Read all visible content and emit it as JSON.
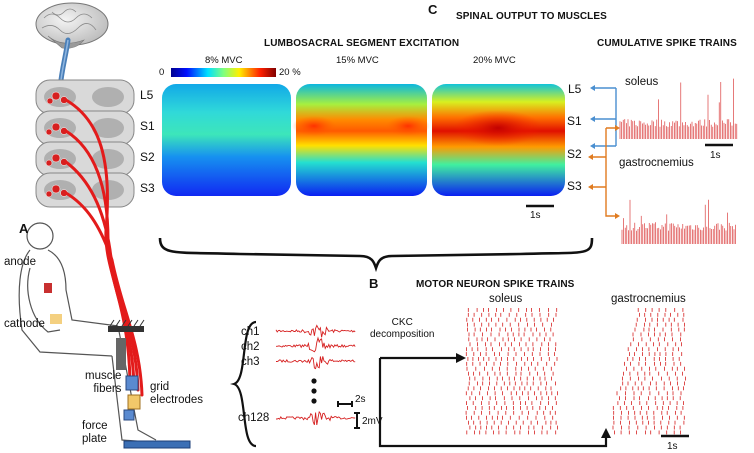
{
  "panels": {
    "a": {
      "letter": "A"
    },
    "b": {
      "letter": "B",
      "title": "MOTOR NEURON SPIKE TRAINS"
    },
    "c": {
      "letter": "C",
      "title": "SPINAL OUTPUT TO MUSCLES"
    }
  },
  "segments": [
    "L5",
    "S1",
    "S2",
    "S3"
  ],
  "heatmaps": {
    "title": "LUMBOSACRAL SEGMENT EXCITATION",
    "scale_min": "0",
    "scale_max": "20 %",
    "conditions": [
      "8% MVC",
      "15% MVC",
      "20% MVC"
    ],
    "scalebar": "1s"
  },
  "cumulative": {
    "title": "CUMULATIVE SPIKE TRAINS",
    "muscle_top": "soleus",
    "muscle_bottom": "gastrocnemius",
    "segments": [
      "L5",
      "S1",
      "S2",
      "S3"
    ],
    "scalebar": "1s"
  },
  "setup": {
    "anode": "anode",
    "cathode": "cathode",
    "muscle_fibers": "muscle\nfibers",
    "grid_electrodes": "grid\nelectrodes",
    "force_plate": "force\nplate"
  },
  "emg": {
    "channels": [
      "ch1",
      "ch2",
      "ch3",
      "ch128"
    ],
    "time_scale": "2s",
    "amp_scale": "2mV"
  },
  "decomposition": {
    "label": "CKC\ndecomposition"
  },
  "raster": {
    "muscle_left": "soleus",
    "muscle_right": "gastrocnemius",
    "scalebar": "1s"
  },
  "colors": {
    "spinal_path": "#e31b1b",
    "spikes": "#d62020",
    "soleus_arrow": "#4a8fd0",
    "gastro_arrow": "#e07b20",
    "force_plate": "#3b6fb5"
  }
}
